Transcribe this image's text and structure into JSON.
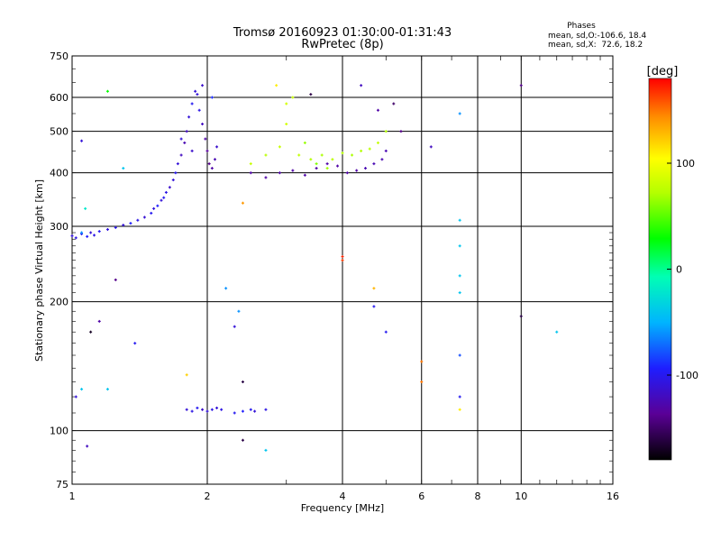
{
  "chart_data": {
    "type": "scatter",
    "title": "Tromsø 20160923 01:30:00-01:31:43",
    "subtitle": "RwPretec (8p)",
    "xlabel": "Frequency [MHz]",
    "ylabel": "Stationary phase Virtual Height [km]",
    "x_scale": "log",
    "y_scale": "log",
    "xlim": [
      1,
      16
    ],
    "ylim": [
      75,
      750
    ],
    "x_ticks": [
      1,
      2,
      4,
      6,
      8,
      10,
      16
    ],
    "x_tick_labels": [
      "1",
      "2",
      "4",
      "6",
      "8",
      "10",
      "16"
    ],
    "y_ticks": [
      75,
      100,
      200,
      300,
      400,
      500,
      600,
      750
    ],
    "y_tick_labels": [
      "75",
      "100",
      "200",
      "300",
      "400",
      "500",
      "600",
      "750"
    ],
    "grid": true,
    "stats": {
      "heading": "Phases",
      "line_O": "mean, sd,O:-106.6, 18.4",
      "line_X": "mean, sd,X:  72.6, 18.2"
    },
    "colorbar": {
      "label": "[deg]",
      "range": [
        -180,
        180
      ],
      "tick_values": [
        100,
        0,
        -100
      ],
      "tick_labels": [
        "100",
        "0",
        "-100"
      ]
    },
    "series": [
      {
        "points": [
          [
            1.0,
            285,
            -110
          ],
          [
            1.02,
            282,
            -105
          ],
          [
            1.05,
            288,
            -100
          ],
          [
            1.08,
            284,
            -95
          ],
          [
            1.1,
            290,
            -110
          ],
          [
            1.12,
            286,
            -105
          ],
          [
            1.15,
            292,
            -100
          ],
          [
            1.2,
            295,
            -108
          ],
          [
            1.25,
            298,
            -102
          ],
          [
            1.3,
            302,
            -110
          ],
          [
            1.35,
            305,
            -95
          ],
          [
            1.4,
            310,
            -105
          ],
          [
            1.45,
            315,
            -112
          ],
          [
            1.5,
            322,
            -100
          ],
          [
            1.52,
            330,
            -108
          ],
          [
            1.55,
            335,
            -95
          ],
          [
            1.58,
            345,
            -110
          ],
          [
            1.6,
            350,
            -100
          ],
          [
            1.62,
            360,
            -105
          ],
          [
            1.65,
            370,
            -115
          ],
          [
            1.68,
            385,
            -110
          ],
          [
            1.7,
            400,
            -100
          ],
          [
            1.72,
            420,
            -110
          ],
          [
            1.75,
            440,
            -120
          ],
          [
            1.78,
            470,
            -125
          ],
          [
            1.8,
            500,
            -120
          ],
          [
            1.82,
            540,
            -110
          ],
          [
            1.85,
            580,
            -100
          ],
          [
            1.88,
            620,
            -110
          ],
          [
            1.9,
            610,
            -110
          ],
          [
            1.92,
            560,
            -105
          ],
          [
            1.95,
            520,
            -120
          ],
          [
            1.98,
            480,
            -130
          ],
          [
            2.0,
            450,
            -135
          ],
          [
            2.02,
            420,
            -140
          ],
          [
            2.05,
            410,
            -130
          ],
          [
            2.08,
            430,
            -125
          ],
          [
            2.1,
            460,
            -115
          ],
          [
            2.05,
            600,
            -90
          ],
          [
            1.95,
            640,
            -115
          ],
          [
            1.85,
            450,
            -115
          ],
          [
            1.75,
            480,
            -110
          ]
        ]
      },
      {
        "points": [
          [
            2.5,
            400,
            -130
          ],
          [
            2.7,
            390,
            -130
          ],
          [
            2.9,
            400,
            -130
          ],
          [
            3.1,
            405,
            -130
          ],
          [
            3.3,
            395,
            -130
          ],
          [
            3.5,
            410,
            -130
          ],
          [
            3.7,
            420,
            -130
          ],
          [
            3.9,
            415,
            -130
          ],
          [
            4.1,
            400,
            -130
          ],
          [
            4.3,
            405,
            -130
          ],
          [
            4.5,
            410,
            -125
          ],
          [
            4.7,
            420,
            -125
          ],
          [
            4.9,
            430,
            -125
          ],
          [
            5.0,
            450,
            -125
          ]
        ]
      },
      {
        "points": [
          [
            2.5,
            420,
            80
          ],
          [
            2.7,
            440,
            75
          ],
          [
            2.9,
            460,
            80
          ],
          [
            3.0,
            520,
            85
          ],
          [
            3.2,
            440,
            78
          ],
          [
            3.4,
            430,
            72
          ],
          [
            3.6,
            440,
            70
          ],
          [
            3.8,
            430,
            75
          ],
          [
            4.0,
            445,
            72
          ],
          [
            4.2,
            440,
            70
          ],
          [
            4.4,
            450,
            72
          ],
          [
            4.6,
            455,
            75
          ],
          [
            4.8,
            470,
            78
          ],
          [
            5.0,
            500,
            72
          ],
          [
            3.0,
            580,
            85
          ],
          [
            3.1,
            600,
            80
          ],
          [
            3.3,
            470,
            65
          ],
          [
            3.5,
            420,
            60
          ],
          [
            3.7,
            410,
            68
          ]
        ]
      },
      {
        "points": [
          [
            1.8,
            112,
            -110
          ],
          [
            1.85,
            111,
            -105
          ],
          [
            1.9,
            113,
            -100
          ],
          [
            1.95,
            112,
            -115
          ],
          [
            2.0,
            111,
            -110
          ],
          [
            2.05,
            112,
            -105
          ],
          [
            2.1,
            113,
            -110
          ],
          [
            2.15,
            112,
            -105
          ],
          [
            2.3,
            110,
            -100
          ],
          [
            2.4,
            111,
            -95
          ],
          [
            2.5,
            112,
            -100
          ],
          [
            2.55,
            111,
            -110
          ],
          [
            2.7,
            112,
            -105
          ],
          [
            7.3,
            310,
            -40
          ],
          [
            7.3,
            270,
            -40
          ],
          [
            7.3,
            230,
            -40
          ],
          [
            7.3,
            210,
            -40
          ],
          [
            7.3,
            150,
            -80
          ],
          [
            7.3,
            120,
            -100
          ],
          [
            7.3,
            112,
            110
          ],
          [
            7.3,
            550,
            -60
          ],
          [
            10.0,
            640,
            -140
          ],
          [
            4.0,
            255,
            170
          ],
          [
            4.0,
            250,
            165
          ],
          [
            4.7,
            215,
            130
          ],
          [
            4.7,
            195,
            -100
          ],
          [
            5.0,
            170,
            -100
          ],
          [
            6.0,
            145,
            150
          ],
          [
            6.0,
            130,
            150
          ],
          [
            6.3,
            460,
            -120
          ],
          [
            5.4,
            500,
            -140
          ],
          [
            1.2,
            620,
            30
          ],
          [
            1.25,
            225,
            -140
          ],
          [
            1.05,
            290,
            -60
          ],
          [
            1.07,
            330,
            -20
          ],
          [
            1.1,
            170,
            -170
          ],
          [
            1.02,
            120,
            -110
          ],
          [
            1.05,
            125,
            -40
          ],
          [
            1.08,
            92,
            -120
          ],
          [
            1.15,
            180,
            -130
          ],
          [
            1.3,
            410,
            -40
          ],
          [
            1.38,
            160,
            -100
          ],
          [
            1.2,
            125,
            -40
          ],
          [
            1.8,
            135,
            120
          ],
          [
            2.3,
            175,
            -110
          ],
          [
            2.35,
            190,
            -60
          ],
          [
            2.4,
            95,
            -160
          ],
          [
            2.2,
            215,
            -60
          ],
          [
            2.4,
            130,
            -160
          ],
          [
            2.7,
            90,
            -40
          ],
          [
            2.85,
            640,
            110
          ],
          [
            3.4,
            610,
            -160
          ],
          [
            4.4,
            640,
            -120
          ],
          [
            10.0,
            185,
            -160
          ],
          [
            12.0,
            170,
            -40
          ],
          [
            1.05,
            475,
            -110
          ],
          [
            2.4,
            340,
            140
          ],
          [
            4.8,
            560,
            -130
          ],
          [
            5.2,
            580,
            -150
          ]
        ]
      }
    ]
  }
}
